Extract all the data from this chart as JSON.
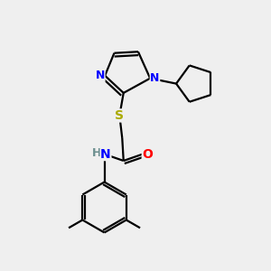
{
  "background_color": "#efefef",
  "atom_colors": {
    "N": "#0000ff",
    "O": "#ff0000",
    "S": "#aaaa00",
    "C": "#000000",
    "H": "#6b8e8e"
  },
  "bond_color": "#000000",
  "bond_lw": 1.6
}
